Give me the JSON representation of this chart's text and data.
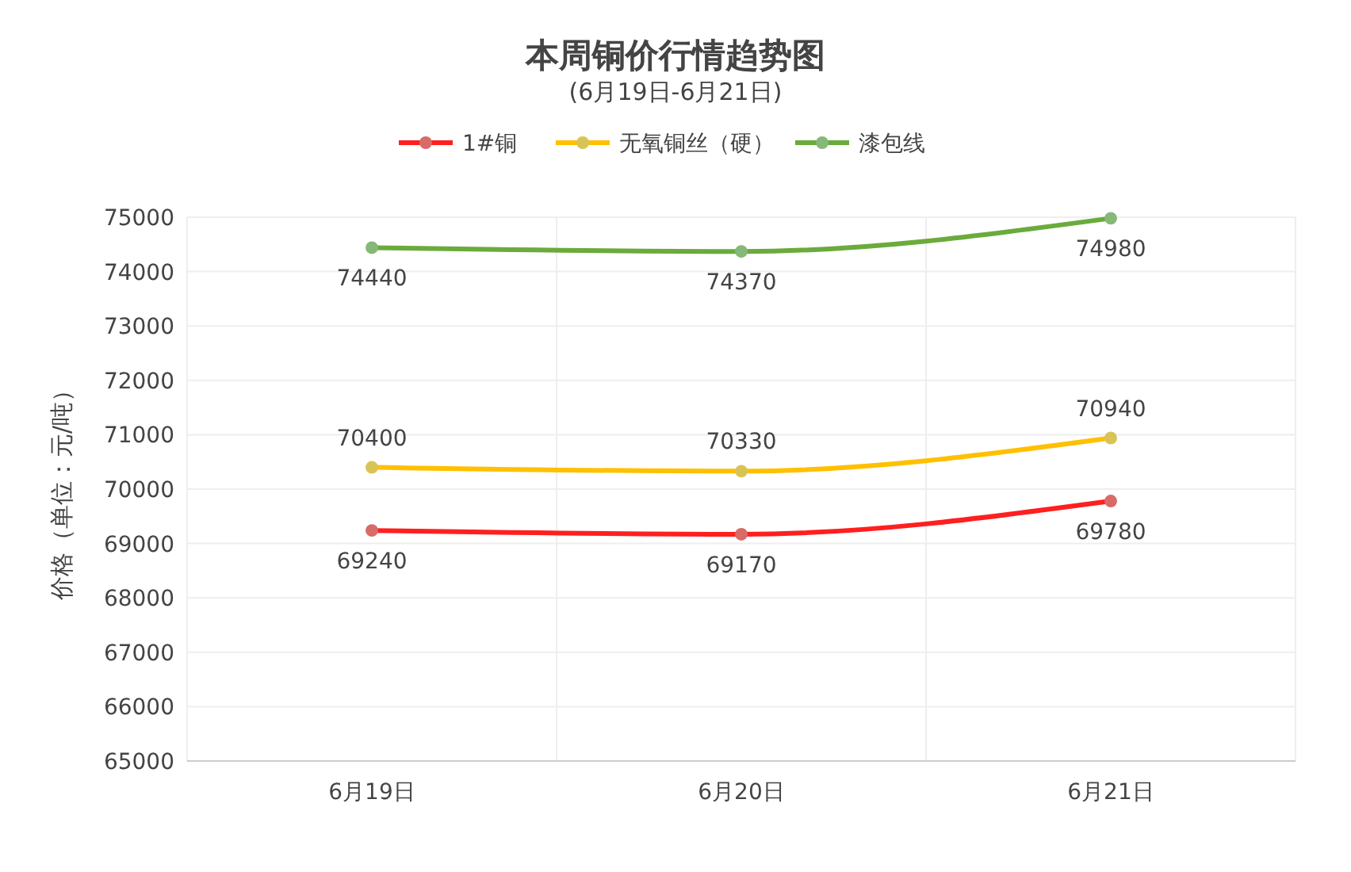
{
  "chart_data": {
    "type": "line",
    "title": "本周铜价行情趋势图",
    "subtitle": "(6月19日-6月21日)",
    "ylabel": "价格（单位：元/吨）",
    "categories": [
      "6月19日",
      "6月20日",
      "6月21日"
    ],
    "series": [
      {
        "name": "1#铜",
        "color": "#ff1f1f",
        "values": [
          69240,
          69170,
          69780
        ]
      },
      {
        "name": "无氧铜丝（硬）",
        "color": "#ffc000",
        "values": [
          70400,
          70330,
          70940
        ]
      },
      {
        "name": "漆包线",
        "color": "#6aab3c",
        "values": [
          74440,
          74370,
          74980
        ]
      }
    ],
    "ylim": [
      65000,
      75000
    ],
    "yticks": [
      65000,
      66000,
      67000,
      68000,
      69000,
      70000,
      71000,
      72000,
      73000,
      74000,
      75000
    ],
    "grid": true,
    "legend": "top",
    "marker": "circle",
    "line_style": "solid",
    "data_labels": true
  }
}
